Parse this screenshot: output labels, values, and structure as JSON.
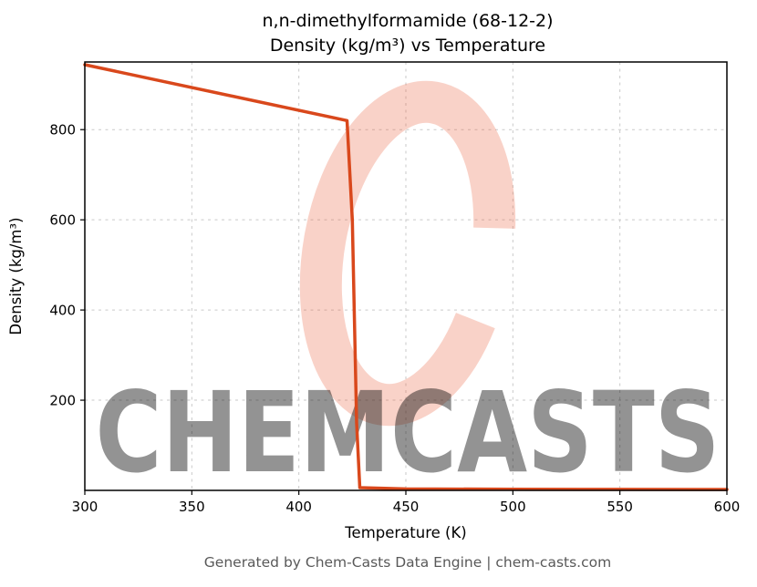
{
  "title": {
    "line1": "n,n-dimethylformamide (68-12-2)",
    "line2": "Density (kg/m³) vs Temperature"
  },
  "footer": "Generated by Chem-Casts Data Engine | chem-casts.com",
  "watermark": {
    "text": "CHEMCASTS",
    "color": "#e85c3a"
  },
  "chart_data": {
    "type": "line",
    "title": "n,n-dimethylformamide (68-12-2) Density (kg/m³) vs Temperature",
    "xlabel": "Temperature (K)",
    "ylabel": "Density (kg/m³)",
    "xlim": [
      300,
      600
    ],
    "ylim": [
      0,
      950
    ],
    "xticks": [
      300,
      350,
      400,
      450,
      500,
      550,
      600
    ],
    "yticks": [
      200,
      400,
      600,
      800
    ],
    "grid": true,
    "legend": false,
    "line_color": "#d9481c",
    "line_width": 3.5,
    "series": [
      {
        "name": "density",
        "points": [
          [
            300,
            944
          ],
          [
            422.5,
            820
          ],
          [
            425,
            600
          ],
          [
            427,
            150
          ],
          [
            428.5,
            6
          ],
          [
            450,
            3.2
          ],
          [
            500,
            2.7
          ],
          [
            550,
            2.3
          ],
          [
            600,
            2
          ]
        ]
      }
    ]
  }
}
